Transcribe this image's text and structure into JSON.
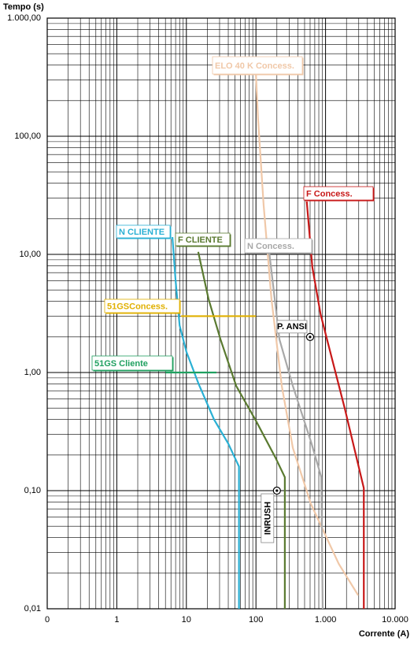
{
  "chart_data": {
    "type": "line",
    "y_label": "Tempo (s)",
    "x_label": "Corrente (A)",
    "xscale": "log",
    "yscale": "log",
    "grid": true,
    "xlim": [
      0.1,
      10000
    ],
    "ylim": [
      0.01,
      1000
    ],
    "xticks": [
      {
        "value": 0.1,
        "label": "0"
      },
      1,
      10,
      100,
      {
        "value": 1000,
        "label": "1.000"
      },
      {
        "value": 10000,
        "label": "10.000"
      }
    ],
    "yticks": [
      {
        "value": 1000,
        "label": "1.000,00"
      },
      {
        "value": 100,
        "label": "100,00"
      },
      {
        "value": 10,
        "label": "10,00"
      },
      {
        "value": 1,
        "label": "1,00"
      },
      {
        "value": 0.1,
        "label": "0,10"
      },
      {
        "value": 0.01,
        "label": "0,01"
      }
    ],
    "series": [
      {
        "name": "N CLIENTE",
        "color": "#2ab0d4",
        "x": [
          6.3,
          7,
          8,
          10,
          15,
          25,
          40,
          57,
          57
        ],
        "values": [
          14,
          6,
          2.5,
          1.5,
          0.8,
          0.4,
          0.25,
          0.16,
          0.01
        ]
      },
      {
        "name": "F CLIENTE",
        "color": "#5a7a30",
        "x": [
          14.8,
          20.8,
          31,
          52,
          100,
          191,
          260,
          260
        ],
        "values": [
          10.5,
          4.2,
          1.9,
          0.77,
          0.39,
          0.19,
          0.13,
          0.01
        ]
      },
      {
        "name": "ELO 40 K Concess.",
        "color": "#f0c8a8",
        "x": [
          100,
          107,
          129,
          167,
          235,
          339,
          617,
          1550,
          2950
        ],
        "values": [
          330,
          142,
          26,
          4.2,
          0.77,
          0.23,
          0.077,
          0.024,
          0.013
        ]
      },
      {
        "name": "F Concess.",
        "color": "#c81818",
        "x": [
          537,
          646,
          850,
          1900,
          3550,
          3550
        ],
        "values": [
          28,
          7.8,
          3.1,
          0.49,
          0.105,
          0.01
        ]
      },
      {
        "name": "N Concess.",
        "color": "#a8a8a8",
        "x": [
          155,
          218,
          339,
          617,
          870,
          910
        ],
        "values": [
          10.5,
          1.9,
          0.77,
          0.26,
          0.13,
          0.01
        ]
      },
      {
        "name": "51GSConcess.",
        "color": "#e0b000",
        "x": [
          8.4,
          100
        ],
        "values": [
          3,
          3
        ]
      },
      {
        "name": "51GS Cliente",
        "color": "#20a060",
        "x": [
          5,
          27
        ],
        "values": [
          1,
          1
        ]
      }
    ],
    "points": [
      {
        "name": "P. ANSI",
        "x": 600,
        "y": 2
      },
      {
        "name": "INRUSH",
        "x": 200,
        "y": 0.1
      }
    ]
  }
}
